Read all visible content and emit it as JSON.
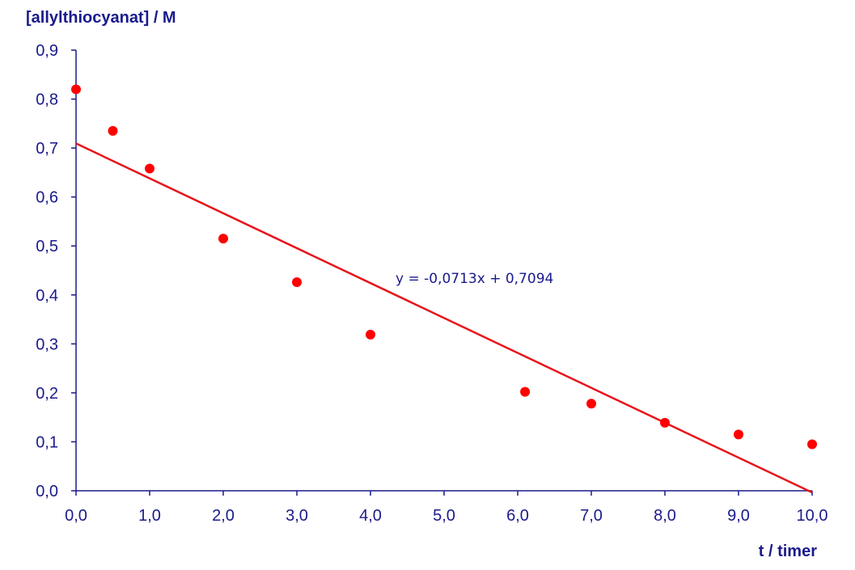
{
  "chart_data": {
    "type": "scatter",
    "ylabel": "[allylthiocyanat]  / M",
    "xlabel": "t / timer",
    "xlim": [
      0,
      10
    ],
    "ylim": [
      0,
      0.9
    ],
    "x_ticks": [
      "0,0",
      "1,0",
      "2,0",
      "3,0",
      "4,0",
      "5,0",
      "6,0",
      "7,0",
      "8,0",
      "9,0",
      "10,0"
    ],
    "y_ticks": [
      "0,0",
      "0,1",
      "0,2",
      "0,3",
      "0,4",
      "0,5",
      "0,6",
      "0,7",
      "0,8",
      "0,9"
    ],
    "grid": false,
    "legend": "none",
    "points": [
      {
        "x": 0.0,
        "y": 0.82
      },
      {
        "x": 0.5,
        "y": 0.735
      },
      {
        "x": 1.0,
        "y": 0.658
      },
      {
        "x": 2.0,
        "y": 0.515
      },
      {
        "x": 3.0,
        "y": 0.426
      },
      {
        "x": 4.0,
        "y": 0.319
      },
      {
        "x": 6.1,
        "y": 0.202
      },
      {
        "x": 7.0,
        "y": 0.178
      },
      {
        "x": 8.0,
        "y": 0.139
      },
      {
        "x": 9.0,
        "y": 0.115
      },
      {
        "x": 10.0,
        "y": 0.095
      }
    ],
    "trendline": {
      "slope": -0.0713,
      "intercept": 0.7094,
      "equation": "y = -0,0713x + 0,7094"
    },
    "colors": {
      "points": "#ff0000",
      "trendline": "#e8141b",
      "text": "#1a1a8c"
    }
  }
}
